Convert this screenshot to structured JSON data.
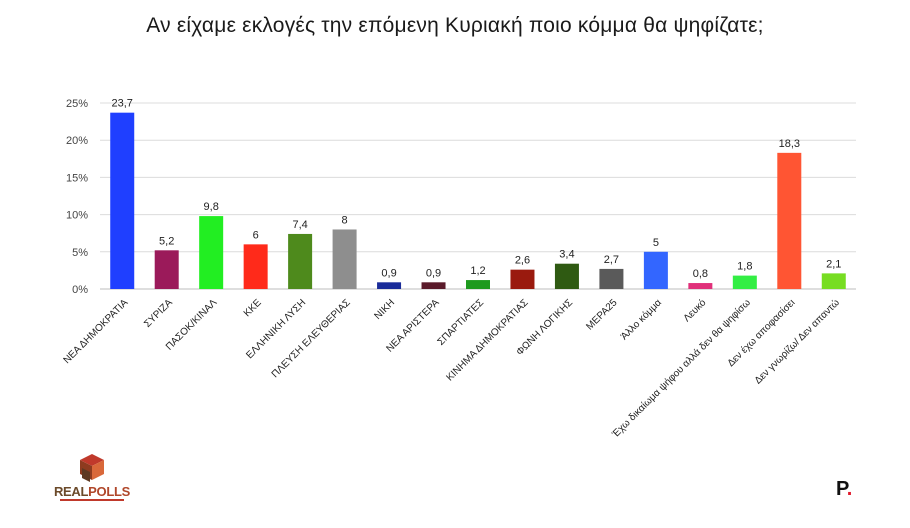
{
  "title": "Αν είχαμε εκλογές την επόμενη Κυριακή ποιο κόμμα θα ψηφίζατε;",
  "logos": {
    "left_part1": "REAL",
    "left_part2": "POLLS",
    "right_text": "P",
    "right_dot": "."
  },
  "chart_data": {
    "type": "bar",
    "title": "Αν είχαμε εκλογές την επόμενη Κυριακή ποιο κόμμα θα ψηφίζατε;",
    "xlabel": "",
    "ylabel": "",
    "ylim": [
      0,
      25
    ],
    "yticks": [
      "0%",
      "5%",
      "10%",
      "15%",
      "20%",
      "25%"
    ],
    "grid": true,
    "categories": [
      "ΝΕΑ ΔΗΜΟΚΡΑΤΙΑ",
      "ΣΥΡΙΖΑ",
      "ΠΑΣΟΚ/ΚΙΝΑΛ",
      "ΚΚΕ",
      "ΕΛΛΗΝΙΚΗ ΛΥΣΗ",
      "ΠΛΕΥΣΗ ΕΛΕΥΘΕΡΙΑΣ",
      "ΝΙΚΗ",
      "ΝΕΑ ΑΡΙΣΤΕΡΑ",
      "ΣΠΑΡΤΙΑΤΕΣ",
      "ΚΙΝΗΜΑ ΔΗΜΟΚΡΑΤΙΑΣ",
      "ΦΩΝΗ ΛΟΓΙΚΗΣ",
      "ΜΕΡΑ25",
      "Άλλο κόμμα",
      "Λευκό",
      "Έχω δικαίωμα ψήφου αλλά δεν θα ψηφίσω",
      "Δεν έχω αποφασίσει",
      "Δεν γνωρίζω/ Δεν απαντώ"
    ],
    "values": [
      23.7,
      5.2,
      9.8,
      6,
      7.4,
      8,
      0.9,
      0.9,
      1.2,
      2.6,
      3.4,
      2.7,
      5,
      0.8,
      1.8,
      18.3,
      2.1
    ],
    "value_labels": [
      "23,7",
      "5,2",
      "9,8",
      "6",
      "7,4",
      "8",
      "0,9",
      "0,9",
      "1,2",
      "2,6",
      "3,4",
      "2,7",
      "5",
      "0,8",
      "1,8",
      "18,3",
      "2,1"
    ],
    "colors": [
      "#1f3fff",
      "#9b1a5a",
      "#22ee22",
      "#ff2a1a",
      "#4e8a1c",
      "#8e8e8e",
      "#1a2c99",
      "#5a1a2a",
      "#1e9a1e",
      "#9a1a0e",
      "#2f5a12",
      "#5a5a5a",
      "#3366ff",
      "#e0307a",
      "#33ee44",
      "#ff5533",
      "#77dd22"
    ]
  }
}
